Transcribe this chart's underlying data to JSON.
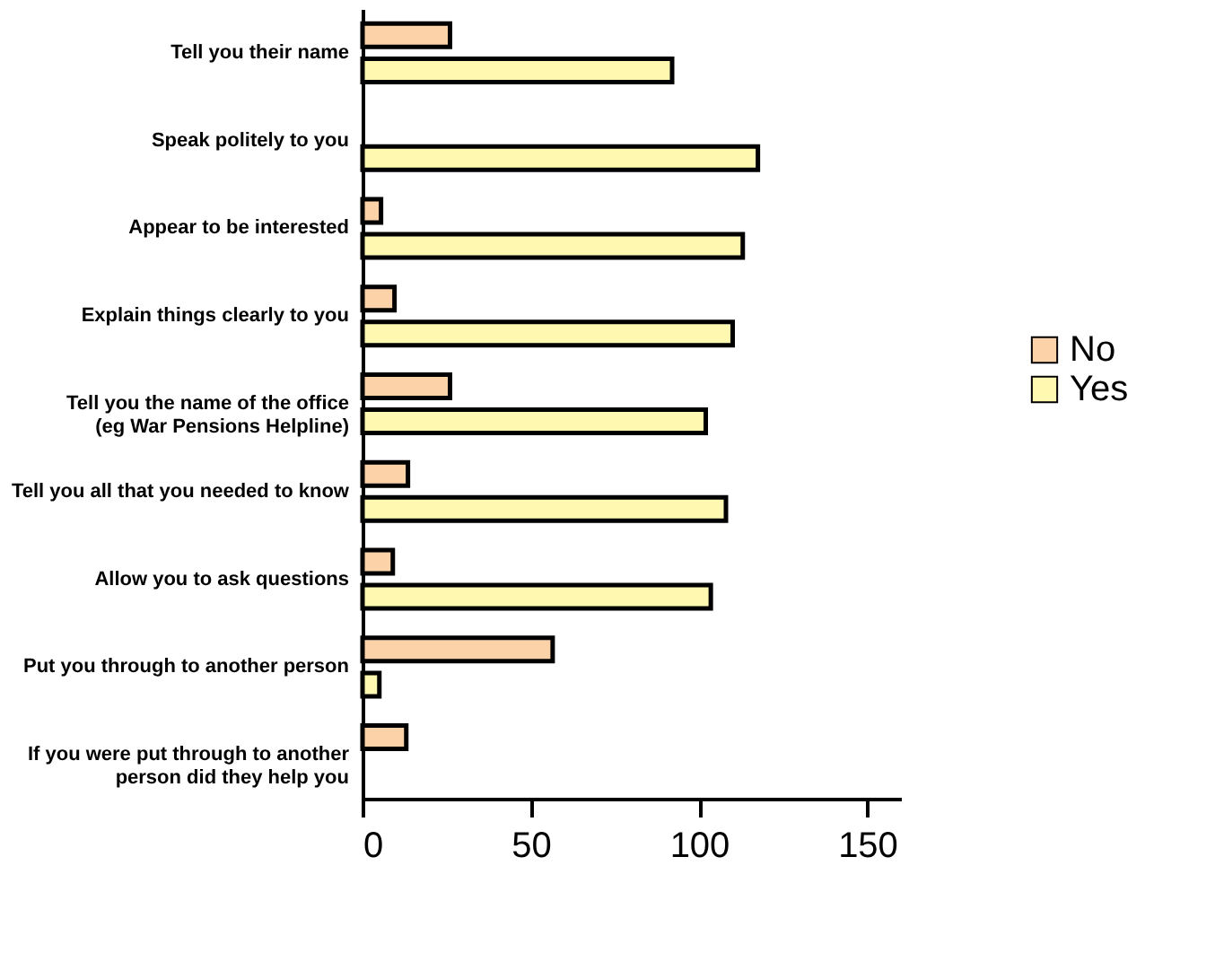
{
  "chart_data": {
    "type": "bar",
    "orientation": "horizontal",
    "categories": [
      "Tell you their name",
      "Speak politely to you",
      "Appear to be interested",
      "Explain things clearly to you",
      "Tell you the name of the office\n(eg War Pensions Helpline)",
      "Tell you all that you needed to know",
      "Allow you to ask questions",
      "Put you through to another person",
      "If you were put through to another\nperson did they help you"
    ],
    "series": [
      {
        "name": "No",
        "color": "#fcd2a8",
        "values": [
          26,
          null,
          5.5,
          9.5,
          26,
          13.5,
          9,
          56.5,
          13
        ]
      },
      {
        "name": "Yes",
        "color": "#fef8b0",
        "values": [
          92,
          117.5,
          113,
          110,
          102,
          108,
          103.5,
          5,
          null
        ]
      }
    ],
    "xlim": [
      0,
      160
    ],
    "xticks": [
      0,
      50,
      100,
      150
    ],
    "grid": false,
    "legend": "right"
  }
}
